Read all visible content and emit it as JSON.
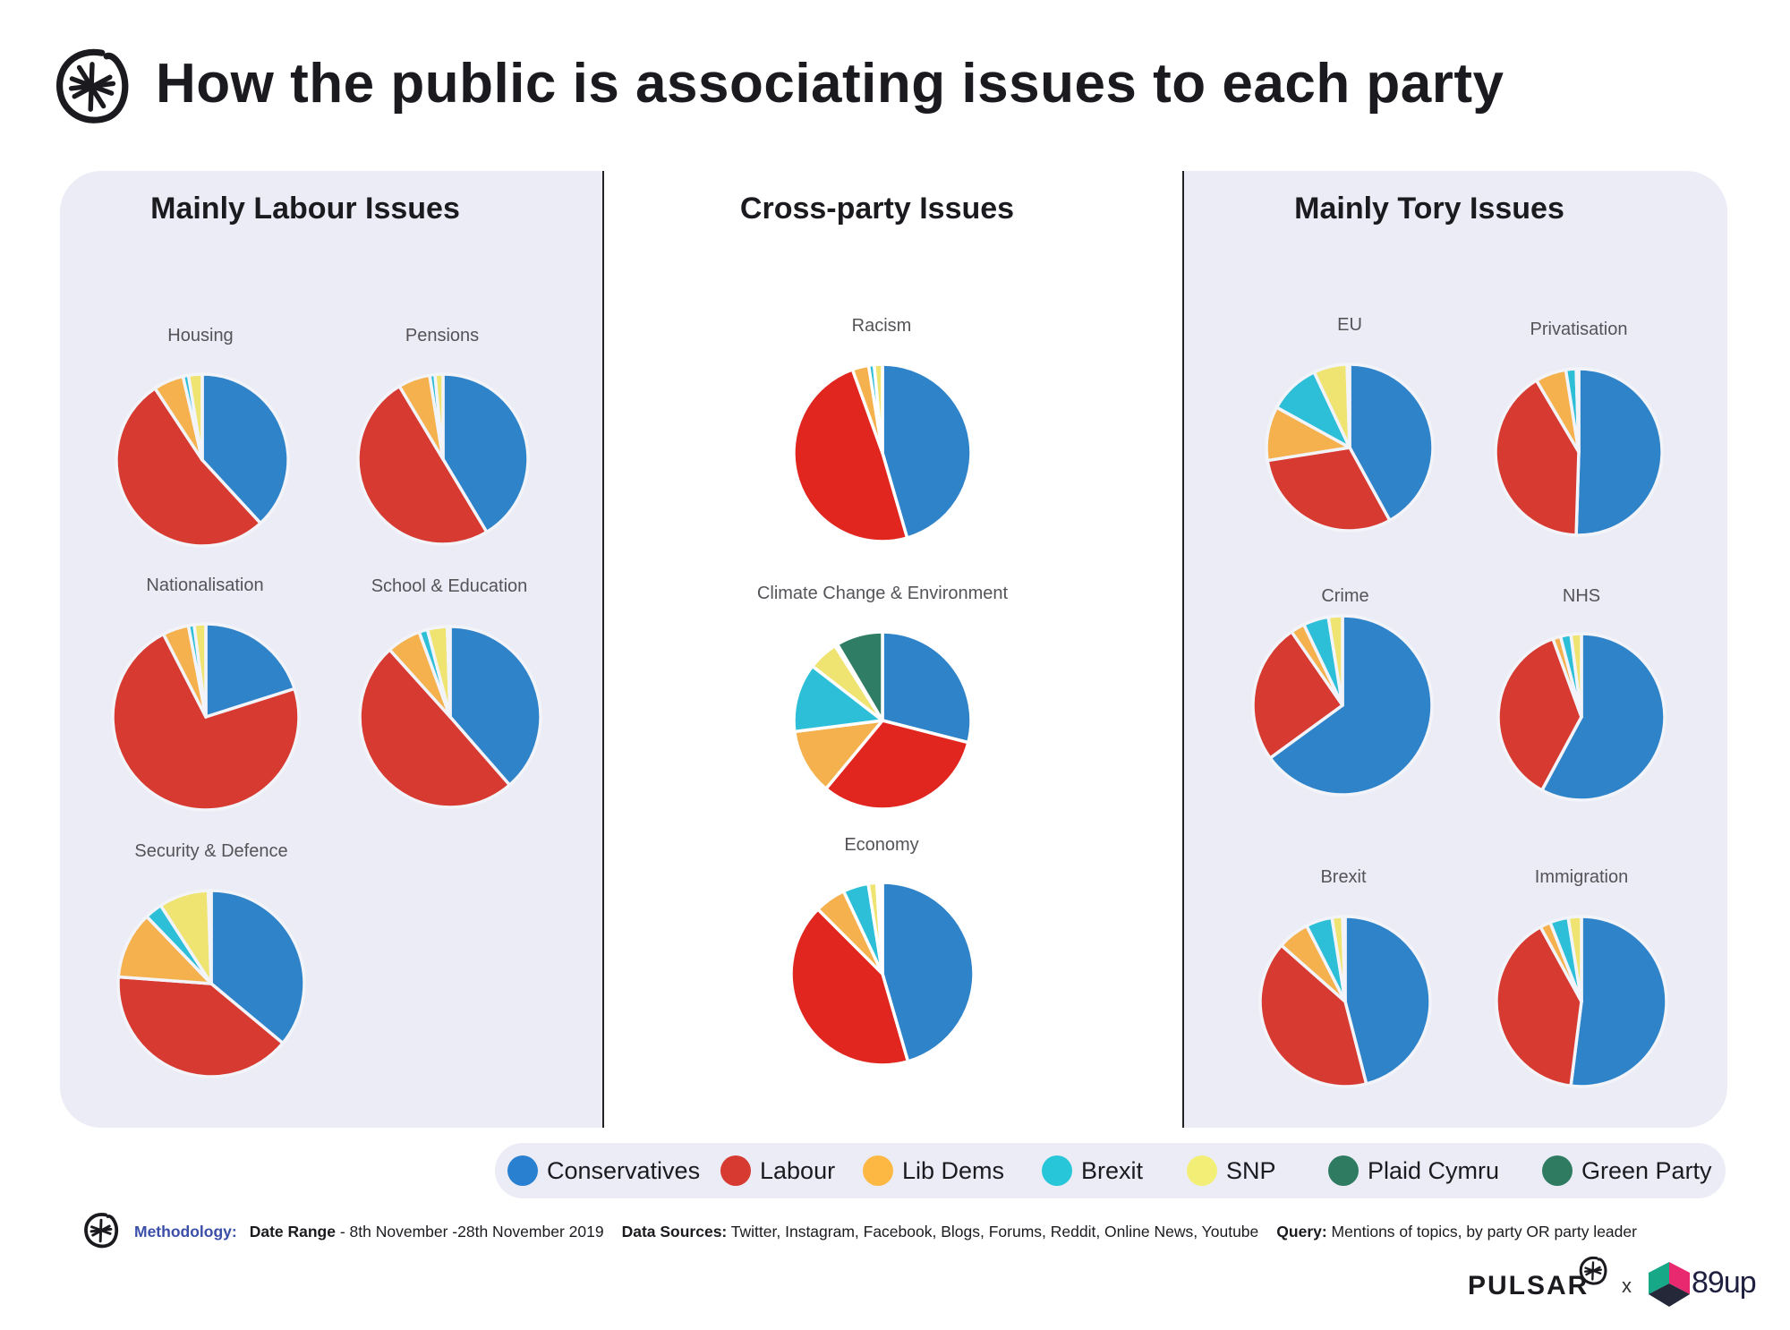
{
  "header": {
    "title": "How the public is associating issues to each party",
    "logo_icon": "pulsar-asterisk-icon"
  },
  "sections": {
    "labour": "Mainly Labour Issues",
    "cross": "Cross-party Issues",
    "tory": "Mainly Tory Issues"
  },
  "colors": {
    "panel_bg": "#ebecf5",
    "conservatives": "#2f83c9",
    "labour": "#d63a30",
    "labour_cross": "#e0261f",
    "lib_dems": "#f5b14e",
    "brexit": "#2dbfd8",
    "snp": "#efe471",
    "plaid_cymru": "#2e7d64",
    "green_party": "#2e7d64"
  },
  "legend": [
    {
      "label": "Conservatives",
      "color": "#2980d0"
    },
    {
      "label": "Labour",
      "color": "#d63a30"
    },
    {
      "label": "Lib Dems",
      "color": "#fcb843"
    },
    {
      "label": "Brexit",
      "color": "#27c6d8"
    },
    {
      "label": "SNP",
      "color": "#f3ee76"
    },
    {
      "label": "Plaid Cymru",
      "color": "#2e7b62"
    },
    {
      "label": "Green Party",
      "color": "#2e7b62"
    }
  ],
  "chart_data": {
    "type": "pie",
    "title": "How the public is associating issues to each party",
    "series_order": [
      "Conservatives",
      "Labour",
      "Lib Dems",
      "Brexit",
      "SNP",
      "Plaid Cymru",
      "Green Party"
    ],
    "unit": "percent share (estimated)",
    "pies": [
      {
        "section": "Mainly Labour Issues",
        "label": "Housing",
        "values": [
          37,
          51,
          5.5,
          1,
          2.5,
          0,
          0
        ]
      },
      {
        "section": "Mainly Labour Issues",
        "label": "Pensions",
        "values": [
          41,
          49.5,
          6,
          1,
          1.5,
          0,
          0
        ]
      },
      {
        "section": "Mainly Labour Issues",
        "label": "Nationalisation",
        "values": [
          20,
          72,
          4.5,
          1,
          2,
          0,
          0
        ]
      },
      {
        "section": "Mainly Labour Issues",
        "label": "School & Education",
        "values": [
          38,
          49,
          6,
          1.5,
          3.5,
          0,
          0.5
        ]
      },
      {
        "section": "Mainly Labour Issues",
        "label": "Security & Defence",
        "values": [
          35.5,
          39.5,
          11.5,
          3,
          8.5,
          0,
          0.5
        ]
      },
      {
        "section": "Cross-party Issues",
        "label": "Racism",
        "values": [
          45.5,
          49,
          3,
          1,
          1.5,
          0,
          0
        ]
      },
      {
        "section": "Cross-party Issues",
        "label": "Climate Change & Environment",
        "values": [
          29,
          32,
          12,
          12.5,
          5.5,
          0.5,
          8.5
        ]
      },
      {
        "section": "Cross-party Issues",
        "label": "Economy",
        "values": [
          45.5,
          42,
          5.5,
          4.5,
          1.5,
          0.5,
          0.5
        ]
      },
      {
        "section": "Mainly Tory Issues",
        "label": "EU",
        "values": [
          42,
          30.5,
          10.5,
          10,
          6.5,
          0,
          0.5
        ]
      },
      {
        "section": "Mainly Tory Issues",
        "label": "Privatisation",
        "values": [
          50.5,
          41,
          6,
          2,
          0.5,
          0,
          0
        ]
      },
      {
        "section": "Mainly Tory Issues",
        "label": "Crime",
        "values": [
          64,
          25,
          2.5,
          4.5,
          2.5,
          0,
          0
        ]
      },
      {
        "section": "Mainly Tory Issues",
        "label": "NHS",
        "values": [
          57,
          36,
          1.5,
          2,
          2,
          0,
          0
        ]
      },
      {
        "section": "Mainly Tory Issues",
        "label": "Brexit",
        "values": [
          46,
          40.5,
          6,
          5,
          2,
          0,
          0.5
        ]
      },
      {
        "section": "Mainly Tory Issues",
        "label": "Immigration",
        "values": [
          52,
          40,
          2,
          3.5,
          2.5,
          0,
          0
        ]
      }
    ]
  },
  "footer": {
    "methodology_label": "Methodology:",
    "date_range_label": "Date Range",
    "date_range_value": " - 8th November -28th November 2019",
    "data_sources_label": "Data Sources:",
    "data_sources_value": " Twitter, Instagram, Facebook, Blogs, Forums, Reddit, Online News, Youtube",
    "query_label": "Query:",
    "query_value": " Mentions of topics, by party OR party leader",
    "logo_icon": "pulsar-asterisk-icon"
  },
  "branding": {
    "pulsar": "PULSAR",
    "separator": "x",
    "partner": "89up"
  }
}
